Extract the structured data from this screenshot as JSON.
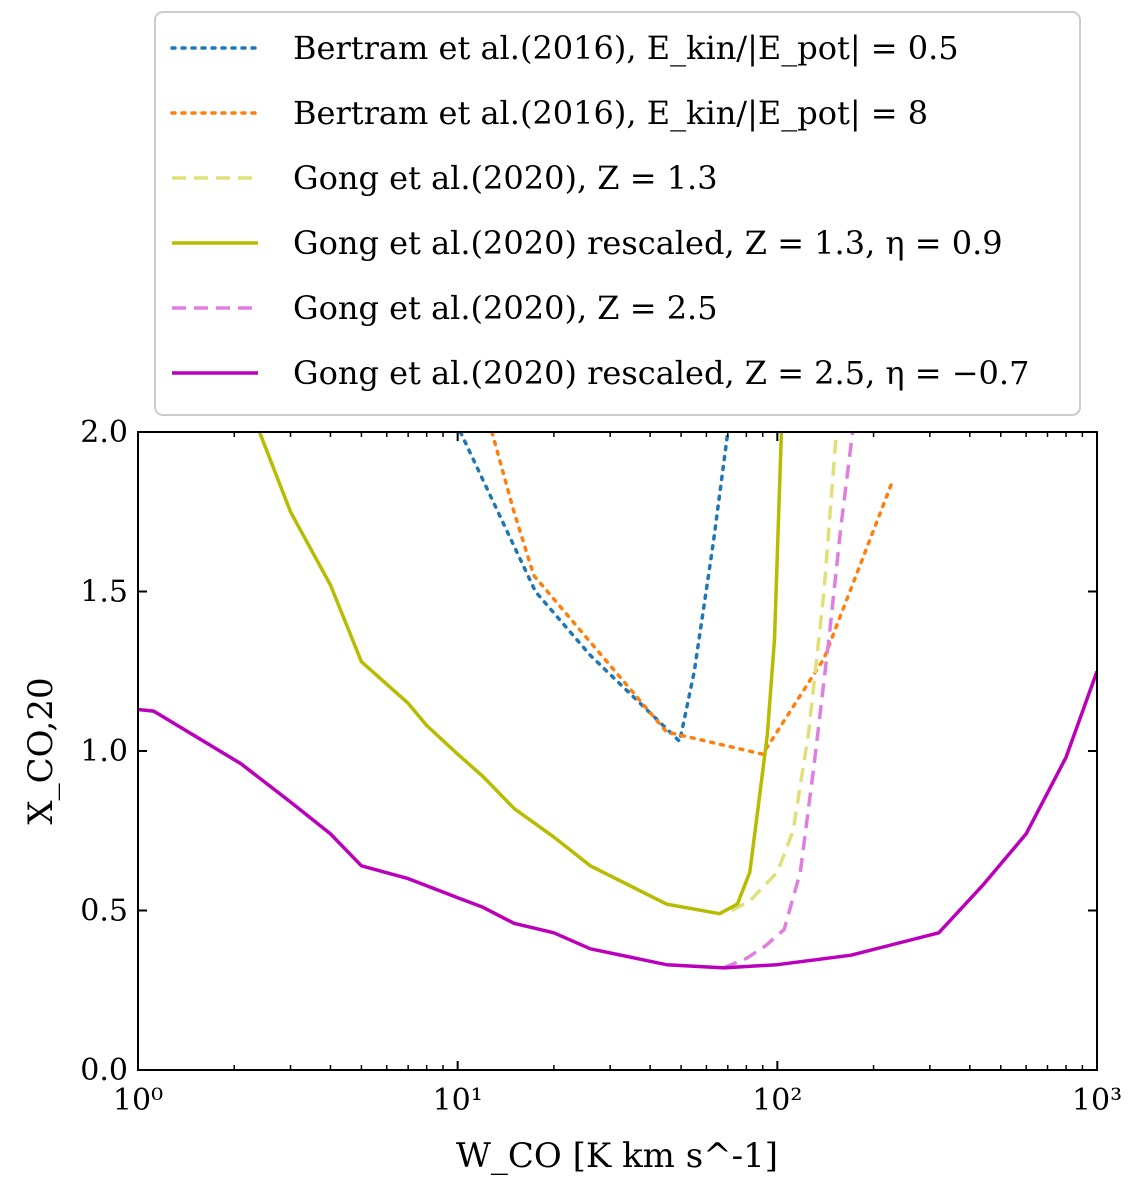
{
  "chart_data": {
    "type": "line",
    "xscale": "log",
    "xlim": [
      1,
      1000
    ],
    "ylim": [
      0.0,
      2.0
    ],
    "xlabel": "W_CO [K km s^-1]",
    "ylabel": "X_CO,20",
    "x_ticks": [
      1,
      10,
      100,
      1000
    ],
    "x_tick_labels": [
      "10⁰",
      "10¹",
      "10²",
      "10³"
    ],
    "y_ticks": [
      0.0,
      0.5,
      1.0,
      1.5,
      2.0
    ],
    "y_tick_labels": [
      "0.0",
      "0.5",
      "1.0",
      "1.5",
      "2.0"
    ],
    "legend_position": "top, above plot",
    "series": [
      {
        "name": "Bertram et al.(2016), E_kin/|E_pot| = 0.5",
        "color": "#1f77b4",
        "style": "dotted",
        "x": [
          10.2,
          17.5,
          26,
          45,
          49.5,
          55,
          63,
          70
        ],
        "y": [
          2.0,
          1.5,
          1.3,
          1.07,
          1.03,
          1.25,
          1.65,
          2.0
        ]
      },
      {
        "name": "Bertram et al.(2016), E_kin/|E_pot| = 8",
        "color": "#ff7f0e",
        "style": "dotted",
        "x": [
          12.8,
          15,
          17.3,
          45,
          90,
          140,
          230
        ],
        "y": [
          2.0,
          1.75,
          1.55,
          1.06,
          0.99,
          1.29,
          1.85
        ]
      },
      {
        "name": "Gong et al.(2020), Z = 1.3",
        "color": "#e0e07a",
        "style": "dashed",
        "x": [
          72,
          82,
          100,
          112,
          125,
          140,
          153
        ],
        "y": [
          0.5,
          0.53,
          0.62,
          0.75,
          1.05,
          1.5,
          2.0
        ]
      },
      {
        "name": "Gong et al.(2020) rescaled, Z = 1.3, η = 0.9",
        "color": "#b8bc00",
        "style": "solid",
        "x": [
          2.4,
          3,
          4,
          5,
          7,
          8,
          10,
          12,
          15,
          20,
          26,
          45,
          66,
          75,
          82,
          87,
          93,
          98,
          103
        ],
        "y": [
          2.0,
          1.75,
          1.52,
          1.28,
          1.15,
          1.08,
          0.99,
          0.92,
          0.82,
          0.73,
          0.64,
          0.52,
          0.49,
          0.52,
          0.62,
          0.82,
          1.05,
          1.35,
          2.0
        ]
      },
      {
        "name": "Gong et al.(2020), Z = 2.5",
        "color": "#e07ee0",
        "style": "dashed",
        "x": [
          68,
          80,
          92,
          105,
          118,
          130,
          145,
          158,
          172
        ],
        "y": [
          0.32,
          0.35,
          0.39,
          0.44,
          0.62,
          0.95,
          1.35,
          1.7,
          2.0
        ]
      },
      {
        "name": "Gong et al.(2020) rescaled, Z = 2.5, η = −0.7",
        "color": "#bb00bb",
        "style": "solid",
        "x": [
          1.0,
          1.12,
          2.1,
          3,
          4,
          5,
          7,
          10,
          12,
          15,
          20,
          26,
          45,
          68,
          100,
          170,
          320,
          440,
          600,
          800,
          1000
        ],
        "y": [
          1.13,
          1.125,
          0.96,
          0.84,
          0.74,
          0.64,
          0.6,
          0.54,
          0.51,
          0.46,
          0.43,
          0.38,
          0.33,
          0.32,
          0.33,
          0.36,
          0.43,
          0.58,
          0.74,
          0.98,
          1.25
        ]
      }
    ]
  }
}
